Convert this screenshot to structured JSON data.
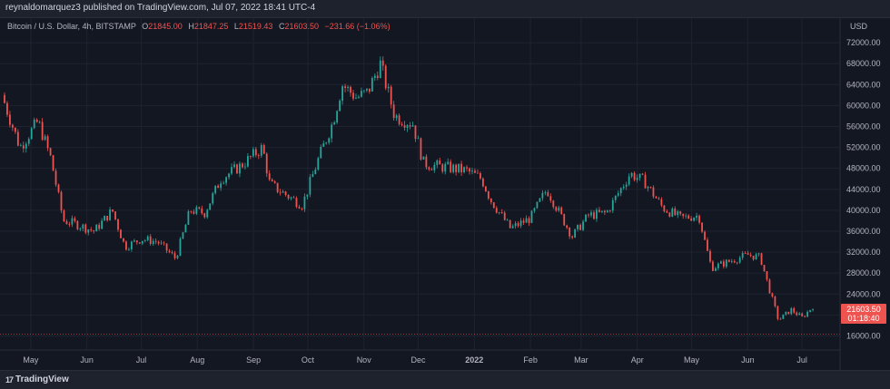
{
  "header": {
    "published_text": "reynaldomarquez3 published on TradingView.com, Jul 07, 2022 18:41 UTC-4"
  },
  "legend": {
    "symbol": "Bitcoin / U.S. Dollar, 4h, BITSTAMP",
    "open": "21845.00",
    "high": "21847.25",
    "low": "21519.43",
    "close": "21603.50",
    "change": "−231.66 (−1.06%)"
  },
  "axis": {
    "currency": "USD",
    "price_label": "21603.50",
    "countdown_label": "01:18:40"
  },
  "footer": {
    "brand": "TradingView"
  },
  "colors": {
    "up": "#26a69a",
    "down": "#ef5350",
    "background": "#131722",
    "grid": "#1f2330",
    "price_tag": "#ef5350"
  },
  "chart_data": {
    "type": "candlestick",
    "title": "Bitcoin / U.S. Dollar, 4h, BITSTAMP",
    "x_tick_labels": [
      "May",
      "Jun",
      "Jul",
      "Aug",
      "Sep",
      "Oct",
      "Nov",
      "Dec",
      "2022",
      "Feb",
      "Mar",
      "Apr",
      "May",
      "Jun",
      "Jul"
    ],
    "y_tick_labels": [
      "16000.00",
      "20000.00",
      "24000.00",
      "28000.00",
      "32000.00",
      "36000.00",
      "40000.00",
      "44000.00",
      "48000.00",
      "52000.00",
      "56000.00",
      "60000.00",
      "64000.00",
      "68000.00",
      "72000.00"
    ],
    "ylim": [
      14000,
      76000
    ],
    "grid": true,
    "approx_price_path": {
      "dates": [
        "2021-04-15",
        "2021-04-25",
        "2021-05-05",
        "2021-05-12",
        "2021-05-19",
        "2021-05-25",
        "2021-06-05",
        "2021-06-15",
        "2021-06-22",
        "2021-07-01",
        "2021-07-10",
        "2021-07-20",
        "2021-07-28",
        "2021-08-05",
        "2021-08-14",
        "2021-08-25",
        "2021-09-06",
        "2021-09-10",
        "2021-09-21",
        "2021-09-28",
        "2021-10-06",
        "2021-10-15",
        "2021-10-20",
        "2021-10-28",
        "2021-11-03",
        "2021-11-10",
        "2021-11-18",
        "2021-11-28",
        "2021-12-04",
        "2021-12-10",
        "2021-12-20",
        "2021-12-28",
        "2022-01-05",
        "2022-01-10",
        "2022-01-21",
        "2022-02-01",
        "2022-02-10",
        "2022-02-24",
        "2022-03-05",
        "2022-03-15",
        "2022-03-28",
        "2022-04-05",
        "2022-04-15",
        "2022-04-25",
        "2022-05-05",
        "2022-05-09",
        "2022-05-12",
        "2022-05-20",
        "2022-06-01",
        "2022-06-08",
        "2022-06-12",
        "2022-06-18",
        "2022-06-25",
        "2022-07-01",
        "2022-07-07"
      ],
      "close": [
        62000,
        52000,
        57000,
        50000,
        38000,
        37500,
        36000,
        40000,
        33000,
        34500,
        34000,
        30800,
        40000,
        39500,
        46000,
        48500,
        52000,
        45000,
        42500,
        41000,
        49000,
        57000,
        64000,
        61500,
        62500,
        68000,
        58000,
        56500,
        49000,
        48500,
        48000,
        47500,
        46000,
        42000,
        36500,
        38500,
        44000,
        35000,
        39000,
        39500,
        47000,
        45500,
        40500,
        38500,
        39000,
        33000,
        29000,
        30000,
        31500,
        31000,
        26000,
        19000,
        21000,
        19500,
        21600
      ]
    }
  }
}
